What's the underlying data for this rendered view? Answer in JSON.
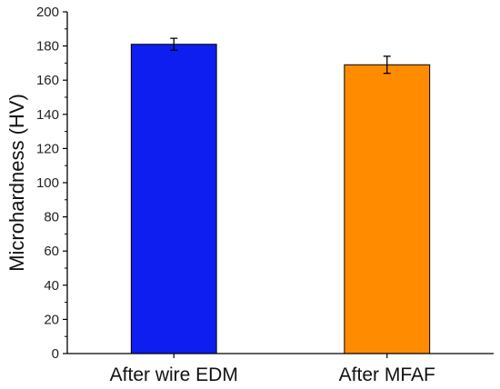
{
  "chart_data": {
    "type": "bar",
    "title": "",
    "xlabel": "",
    "ylabel": "Microhardness (HV)",
    "categories": [
      "After wire EDM",
      "After MFAF"
    ],
    "values": [
      181,
      169
    ],
    "errors": [
      3.5,
      5
    ],
    "colors": [
      "#0f1ef0",
      "#ff8c00"
    ],
    "ylim": [
      0,
      200
    ],
    "yticks": [
      "0",
      "20",
      "40",
      "60",
      "80",
      "100",
      "120",
      "140",
      "160",
      "180",
      "200"
    ],
    "grid": false,
    "legend": "none"
  }
}
